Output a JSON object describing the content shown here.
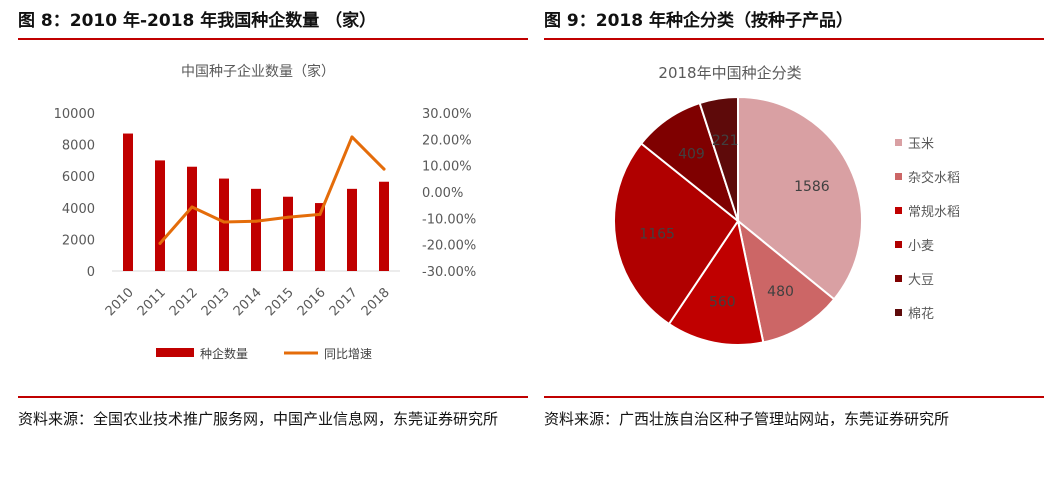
{
  "left": {
    "figure_title": "图 8：2010 年-2018 年我国种企数量 （家）",
    "source": "资料来源：全国农业技术推广服务网，中国产业信息网，东莞证券研究所"
  },
  "right": {
    "figure_title": "图 9：2018 年种企分类（按种子产品）",
    "source": "资料来源：广西壮族自治区种子管理站网站，东莞证券研究所"
  },
  "chart_data": [
    {
      "type": "bar",
      "title": "中国种子企业数量（家）",
      "categories": [
        "2010",
        "2011",
        "2012",
        "2013",
        "2014",
        "2015",
        "2016",
        "2017",
        "2018"
      ],
      "series": [
        {
          "name": "种企数量",
          "kind": "bar",
          "axis": "left",
          "values": [
            8700,
            7000,
            6600,
            5850,
            5200,
            4700,
            4300,
            5200,
            5650
          ]
        },
        {
          "name": "同比增速",
          "kind": "line",
          "axis": "right",
          "values": [
            null,
            -19.5,
            -5.7,
            -11.4,
            -11.1,
            -9.6,
            -8.5,
            20.9,
            8.7
          ]
        }
      ],
      "y_left": {
        "ylim": [
          0,
          10000
        ],
        "ticks": [
          "0",
          "2000",
          "4000",
          "6000",
          "8000",
          "10000"
        ]
      },
      "y_right": {
        "ylim": [
          -30,
          30
        ],
        "ticks": [
          "-30.00%",
          "-20.00%",
          "-10.00%",
          "0.00%",
          "10.00%",
          "20.00%",
          "30.00%"
        ]
      },
      "legend_position": "bottom",
      "colors": {
        "bar": "#c00000",
        "line": "#e46c0a"
      }
    },
    {
      "type": "pie",
      "title": "2018年中国种企分类",
      "labels": [
        "玉米",
        "杂交水稻",
        "常规水稻",
        "小麦",
        "大豆",
        "棉花"
      ],
      "values": [
        1586,
        480,
        560,
        1165,
        409,
        221
      ],
      "colors": [
        "#d9a0a3",
        "#cc6666",
        "#c00000",
        "#b00000",
        "#7f0000",
        "#5e0a0a"
      ],
      "legend_position": "right"
    }
  ]
}
